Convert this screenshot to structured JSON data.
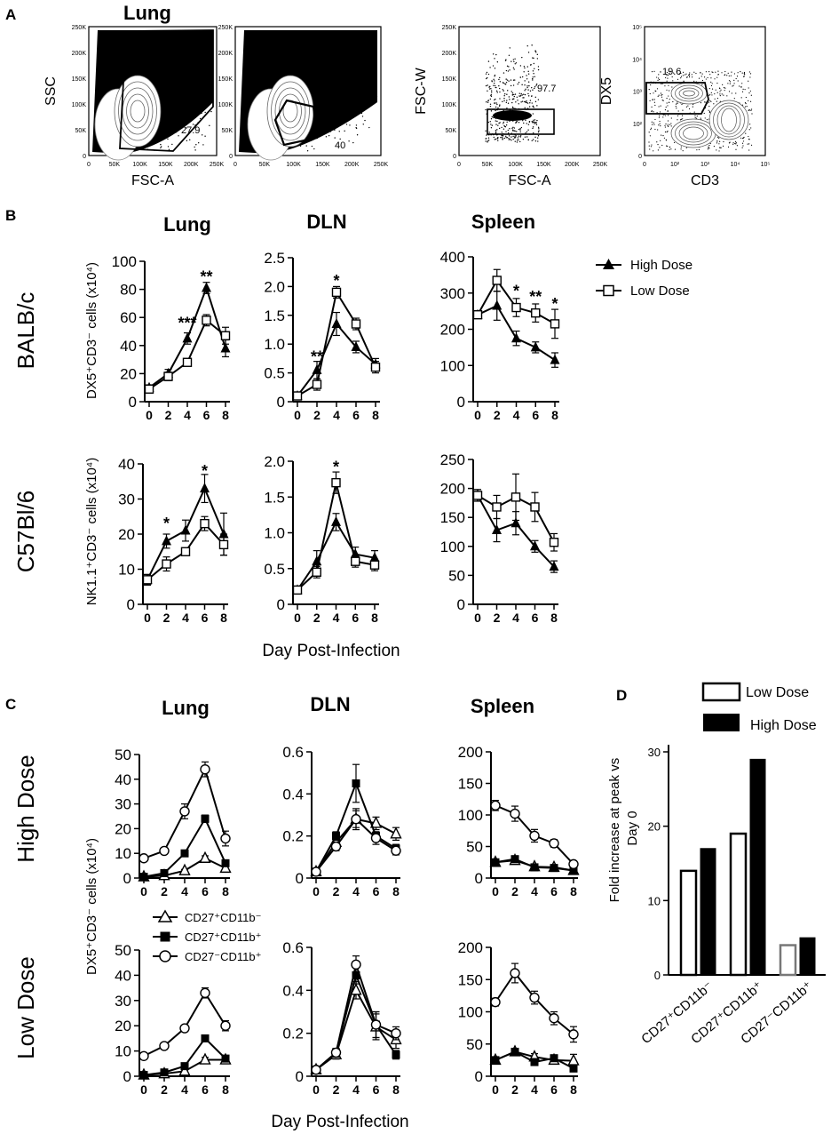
{
  "panel_labels": {
    "A": "A",
    "B": "B",
    "C": "C",
    "D": "D"
  },
  "panel_a": {
    "title": "Lung",
    "plots": [
      {
        "xlabel": "FSC-A",
        "ylabel": "SSC",
        "gate_value": "27.9",
        "x_ticks": [
          "0",
          "50K",
          "100K",
          "150K",
          "200K",
          "250K"
        ],
        "y_ticks": [
          "0",
          "50K",
          "100K",
          "150K",
          "200K",
          "250K"
        ]
      },
      {
        "xlabel": "",
        "ylabel": "",
        "gate_value": "40",
        "x_ticks": [
          "0",
          "50K",
          "100K",
          "150K",
          "200K",
          "250K"
        ],
        "y_ticks": [
          "0",
          "50K",
          "100K",
          "150K",
          "200K",
          "250K"
        ]
      },
      {
        "xlabel": "FSC-A",
        "ylabel": "FSC-W",
        "gate_value": "97.7",
        "x_ticks": [
          "0",
          "50K",
          "100K",
          "150K",
          "200K",
          "250K"
        ],
        "y_ticks": [
          "0",
          "50K",
          "100K",
          "150K",
          "200K",
          "250K"
        ]
      },
      {
        "xlabel": "CD3",
        "ylabel": "DX5",
        "gate_value": "19.6",
        "x_ticks": [
          "0",
          "10²",
          "10³",
          "10⁴",
          "10⁵"
        ],
        "y_ticks": [
          "0",
          "10²",
          "10³",
          "10⁴",
          "10⁵"
        ]
      }
    ]
  },
  "panel_b": {
    "column_titles": [
      "Lung",
      "DLN",
      "Spleen"
    ],
    "row_labels": [
      "BALB/c",
      "C57Bl/6"
    ],
    "ylabel_row1": "DX5⁺CD3⁻ cells (x10⁴)",
    "ylabel_row2": "NK1.1⁺CD3⁻ cells (x10⁴)",
    "xlabel": "Day Post-Infection",
    "legend": [
      {
        "name": "High Dose",
        "marker": "triangle-filled"
      },
      {
        "name": "Low Dose",
        "marker": "square-open"
      }
    ]
  },
  "panel_c": {
    "column_titles": [
      "Lung",
      "DLN",
      "Spleen"
    ],
    "row_labels": [
      "High Dose",
      "Low Dose"
    ],
    "ylabel": "DX5⁺CD3⁻ cells (x10⁴)",
    "xlabel": "Day Post-Infection",
    "legend": [
      {
        "name": "CD27⁺CD11b⁻",
        "marker": "triangle-open"
      },
      {
        "name": "CD27⁺CD11b⁺",
        "marker": "square-filled"
      },
      {
        "name": "CD27⁻CD11b⁺",
        "marker": "circle-open"
      }
    ]
  },
  "panel_d": {
    "legend": [
      {
        "name": "Low Dose",
        "fill": "#ffffff"
      },
      {
        "name": "High Dose",
        "fill": "#000000"
      }
    ],
    "ylabel_line1": "Fold increase at peak vs",
    "ylabel_line2": "Day 0"
  },
  "chart_data": [
    {
      "id": "b_lung_balbc",
      "type": "line",
      "x": [
        0,
        2,
        4,
        6,
        8
      ],
      "ylim": [
        0,
        100
      ],
      "yticks": [
        0,
        20,
        40,
        60,
        80,
        100
      ],
      "series": [
        {
          "name": "High Dose",
          "marker": "triangle-filled",
          "values": [
            10,
            20,
            45,
            81,
            38
          ],
          "err": [
            2,
            3,
            4,
            4,
            6
          ]
        },
        {
          "name": "Low Dose",
          "marker": "square-open",
          "values": [
            9,
            18,
            28,
            58,
            47
          ],
          "err": [
            2,
            3,
            2,
            4,
            6
          ]
        }
      ],
      "annotations": [
        {
          "x": 4,
          "y": 56,
          "text": "***"
        },
        {
          "x": 6,
          "y": 89,
          "text": "**"
        }
      ]
    },
    {
      "id": "b_dln_balbc",
      "type": "line",
      "x": [
        0,
        2,
        4,
        6,
        8
      ],
      "ylim": [
        0,
        2.5
      ],
      "yticks": [
        0,
        0.5,
        1.0,
        1.5,
        2.0,
        2.5
      ],
      "ytick_labels": [
        "0",
        "0.5",
        "1.0",
        "1.5",
        "2.0",
        "2.5"
      ],
      "series": [
        {
          "name": "High Dose",
          "marker": "triangle-filled",
          "values": [
            0.1,
            0.55,
            1.35,
            0.95,
            0.65
          ],
          "err": [
            0.05,
            0.15,
            0.2,
            0.1,
            0.1
          ]
        },
        {
          "name": "Low Dose",
          "marker": "square-open",
          "values": [
            0.1,
            0.3,
            1.9,
            1.35,
            0.6
          ],
          "err": [
            0.05,
            0.1,
            0.1,
            0.1,
            0.1
          ]
        }
      ],
      "annotations": [
        {
          "x": 2,
          "y": 0.78,
          "text": "**"
        },
        {
          "x": 4,
          "y": 2.1,
          "text": "*"
        }
      ]
    },
    {
      "id": "b_spleen_balbc",
      "type": "line",
      "x": [
        0,
        2,
        4,
        6,
        8
      ],
      "ylim": [
        0,
        400
      ],
      "yticks": [
        0,
        100,
        200,
        300,
        400
      ],
      "series": [
        {
          "name": "High Dose",
          "marker": "triangle-filled",
          "values": [
            240,
            265,
            175,
            150,
            115
          ],
          "err": [
            10,
            40,
            20,
            15,
            20
          ]
        },
        {
          "name": "Low Dose",
          "marker": "square-open",
          "values": [
            240,
            335,
            260,
            245,
            215
          ],
          "err": [
            10,
            30,
            25,
            25,
            40
          ]
        }
      ],
      "annotations": [
        {
          "x": 4,
          "y": 305,
          "text": "*"
        },
        {
          "x": 6,
          "y": 290,
          "text": "**"
        },
        {
          "x": 8,
          "y": 270,
          "text": "*"
        }
      ]
    },
    {
      "id": "b_lung_c57",
      "type": "line",
      "x": [
        0,
        2,
        4,
        6,
        8
      ],
      "ylim": [
        0,
        40
      ],
      "yticks": [
        0,
        10,
        20,
        30,
        40
      ],
      "series": [
        {
          "name": "High Dose",
          "marker": "triangle-filled",
          "values": [
            7,
            18,
            21,
            33,
            20
          ],
          "err": [
            1.5,
            2,
            3,
            4,
            6
          ]
        },
        {
          "name": "Low Dose",
          "marker": "square-open",
          "values": [
            7,
            11.5,
            15,
            23,
            17
          ],
          "err": [
            1.5,
            2,
            1,
            2,
            3
          ]
        }
      ],
      "annotations": [
        {
          "x": 2,
          "y": 23,
          "text": "*"
        },
        {
          "x": 6,
          "y": 38,
          "text": "*"
        }
      ]
    },
    {
      "id": "b_dln_c57",
      "type": "line",
      "x": [
        0,
        2,
        4,
        6,
        8
      ],
      "ylim": [
        0,
        2.0
      ],
      "yticks": [
        0,
        0.5,
        1.0,
        1.5,
        2.0
      ],
      "ytick_labels": [
        "0",
        "0.5",
        "1.0",
        "1.5",
        "2.0"
      ],
      "series": [
        {
          "name": "High Dose",
          "marker": "triangle-filled",
          "values": [
            0.2,
            0.6,
            1.15,
            0.7,
            0.65
          ],
          "err": [
            0.05,
            0.15,
            0.12,
            0.1,
            0.1
          ]
        },
        {
          "name": "Low Dose",
          "marker": "square-open",
          "values": [
            0.2,
            0.45,
            1.7,
            0.6,
            0.55
          ],
          "err": [
            0.05,
            0.08,
            0.15,
            0.08,
            0.08
          ]
        }
      ],
      "annotations": [
        {
          "x": 4,
          "y": 1.92,
          "text": "*"
        }
      ]
    },
    {
      "id": "b_spleen_c57",
      "type": "line",
      "x": [
        0,
        2,
        4,
        6,
        8
      ],
      "ylim": [
        0,
        250
      ],
      "yticks": [
        0,
        50,
        100,
        150,
        200,
        250
      ],
      "series": [
        {
          "name": "High Dose",
          "marker": "triangle-filled",
          "values": [
            188,
            128,
            140,
            100,
            65
          ],
          "err": [
            10,
            20,
            20,
            10,
            10
          ]
        },
        {
          "name": "Low Dose",
          "marker": "square-open",
          "values": [
            188,
            168,
            185,
            168,
            107
          ],
          "err": [
            10,
            20,
            40,
            25,
            15
          ]
        }
      ],
      "annotations": []
    },
    {
      "id": "c_lung_high",
      "type": "line",
      "x": [
        0,
        2,
        4,
        6,
        8
      ],
      "ylim": [
        0,
        50
      ],
      "yticks": [
        0,
        10,
        20,
        30,
        40,
        50
      ],
      "series": [
        {
          "name": "CD27⁺CD11b⁻",
          "marker": "triangle-open",
          "values": [
            0.5,
            1,
            3,
            8,
            4
          ],
          "err": [
            0.3,
            0.5,
            0.5,
            1,
            1
          ]
        },
        {
          "name": "CD27⁺CD11b⁺",
          "marker": "square-filled",
          "values": [
            0.5,
            2,
            10,
            24,
            6
          ],
          "err": [
            0.3,
            0.5,
            1,
            1.5,
            1
          ]
        },
        {
          "name": "CD27⁻CD11b⁺",
          "marker": "circle-open",
          "values": [
            8,
            11,
            27,
            44,
            16
          ],
          "err": [
            1,
            1,
            3,
            3,
            3
          ]
        }
      ]
    },
    {
      "id": "c_dln_high",
      "type": "line",
      "x": [
        0,
        2,
        4,
        6,
        8
      ],
      "ylim": [
        0,
        0.6
      ],
      "yticks": [
        0,
        0.2,
        0.4,
        0.6
      ],
      "ytick_labels": [
        "0",
        "0.2",
        "0.4",
        "0.6"
      ],
      "series": [
        {
          "name": "CD27⁺CD11b⁻",
          "marker": "triangle-open",
          "values": [
            0.03,
            0.17,
            0.28,
            0.26,
            0.21
          ],
          "err": [
            0.01,
            0.02,
            0.04,
            0.03,
            0.03
          ]
        },
        {
          "name": "CD27⁺CD11b⁺",
          "marker": "square-filled",
          "values": [
            0.03,
            0.2,
            0.45,
            0.2,
            0.14
          ],
          "err": [
            0.01,
            0.02,
            0.09,
            0.02,
            0.02
          ]
        },
        {
          "name": "CD27⁻CD11b⁺",
          "marker": "circle-open",
          "values": [
            0.03,
            0.15,
            0.28,
            0.19,
            0.13
          ],
          "err": [
            0.01,
            0.02,
            0.05,
            0.03,
            0.02
          ]
        }
      ]
    },
    {
      "id": "c_spleen_high",
      "type": "line",
      "x": [
        0,
        2,
        4,
        6,
        8
      ],
      "ylim": [
        0,
        200
      ],
      "yticks": [
        0,
        50,
        100,
        150,
        200
      ],
      "series": [
        {
          "name": "CD27⁺CD11b⁻",
          "marker": "triangle-open",
          "values": [
            25,
            28,
            18,
            17,
            12
          ],
          "err": [
            5,
            4,
            3,
            3,
            3
          ]
        },
        {
          "name": "CD27⁺CD11b⁺",
          "marker": "square-filled",
          "values": [
            25,
            30,
            17,
            16,
            12
          ],
          "err": [
            5,
            4,
            3,
            3,
            3
          ]
        },
        {
          "name": "CD27⁻CD11b⁺",
          "marker": "circle-open",
          "values": [
            115,
            102,
            67,
            55,
            22
          ],
          "err": [
            8,
            12,
            10,
            6,
            5
          ]
        }
      ]
    },
    {
      "id": "c_lung_low",
      "type": "line",
      "x": [
        0,
        2,
        4,
        6,
        8
      ],
      "ylim": [
        0,
        50
      ],
      "yticks": [
        0,
        10,
        20,
        30,
        40,
        50
      ],
      "series": [
        {
          "name": "CD27⁺CD11b⁻",
          "marker": "triangle-open",
          "values": [
            0.5,
            1,
            2,
            6.5,
            6.5
          ],
          "err": [
            0.3,
            0.5,
            0.5,
            1,
            1
          ]
        },
        {
          "name": "CD27⁺CD11b⁺",
          "marker": "square-filled",
          "values": [
            0.5,
            1.5,
            4,
            15,
            7
          ],
          "err": [
            0.3,
            0.5,
            0.5,
            1,
            1
          ]
        },
        {
          "name": "CD27⁻CD11b⁺",
          "marker": "circle-open",
          "values": [
            8,
            12,
            19,
            33,
            20
          ],
          "err": [
            1,
            1,
            1,
            2,
            2
          ]
        }
      ]
    },
    {
      "id": "c_dln_low",
      "type": "line",
      "x": [
        0,
        2,
        4,
        6,
        8
      ],
      "ylim": [
        0,
        0.6
      ],
      "yticks": [
        0,
        0.2,
        0.4,
        0.6
      ],
      "ytick_labels": [
        "0",
        "0.2",
        "0.4",
        "0.6"
      ],
      "series": [
        {
          "name": "CD27⁺CD11b⁻",
          "marker": "triangle-open",
          "values": [
            0.03,
            0.1,
            0.4,
            0.23,
            0.17
          ],
          "err": [
            0.01,
            0.02,
            0.04,
            0.06,
            0.04
          ]
        },
        {
          "name": "CD27⁺CD11b⁺",
          "marker": "square-filled",
          "values": [
            0.03,
            0.11,
            0.47,
            0.24,
            0.1
          ],
          "err": [
            0.01,
            0.02,
            0.04,
            0.06,
            0.02
          ]
        },
        {
          "name": "CD27⁻CD11b⁺",
          "marker": "circle-open",
          "values": [
            0.03,
            0.11,
            0.52,
            0.24,
            0.2
          ],
          "err": [
            0.01,
            0.02,
            0.04,
            0.06,
            0.03
          ]
        }
      ]
    },
    {
      "id": "c_spleen_low",
      "type": "line",
      "x": [
        0,
        2,
        4,
        6,
        8
      ],
      "ylim": [
        0,
        200
      ],
      "yticks": [
        0,
        50,
        100,
        150,
        200
      ],
      "series": [
        {
          "name": "CD27⁺CD11b⁻",
          "marker": "triangle-open",
          "values": [
            25,
            38,
            30,
            25,
            24
          ],
          "err": [
            5,
            5,
            5,
            5,
            10
          ]
        },
        {
          "name": "CD27⁺CD11b⁺",
          "marker": "square-filled",
          "values": [
            25,
            38,
            22,
            28,
            12
          ],
          "err": [
            5,
            5,
            5,
            5,
            5
          ]
        },
        {
          "name": "CD27⁻CD11b⁺",
          "marker": "circle-open",
          "values": [
            115,
            160,
            122,
            90,
            65
          ],
          "err": [
            6,
            15,
            10,
            10,
            12
          ]
        }
      ]
    },
    {
      "id": "d_bar",
      "type": "bar",
      "categories": [
        "CD27⁺CD11b⁻",
        "CD27⁺CD11b⁺",
        "CD27⁻CD11b⁺"
      ],
      "ylim": [
        0,
        30
      ],
      "yticks": [
        0,
        10,
        20,
        30
      ],
      "series": [
        {
          "name": "Low Dose",
          "values": [
            14,
            19,
            4
          ]
        },
        {
          "name": "High Dose",
          "values": [
            17,
            29,
            5
          ]
        }
      ]
    }
  ]
}
